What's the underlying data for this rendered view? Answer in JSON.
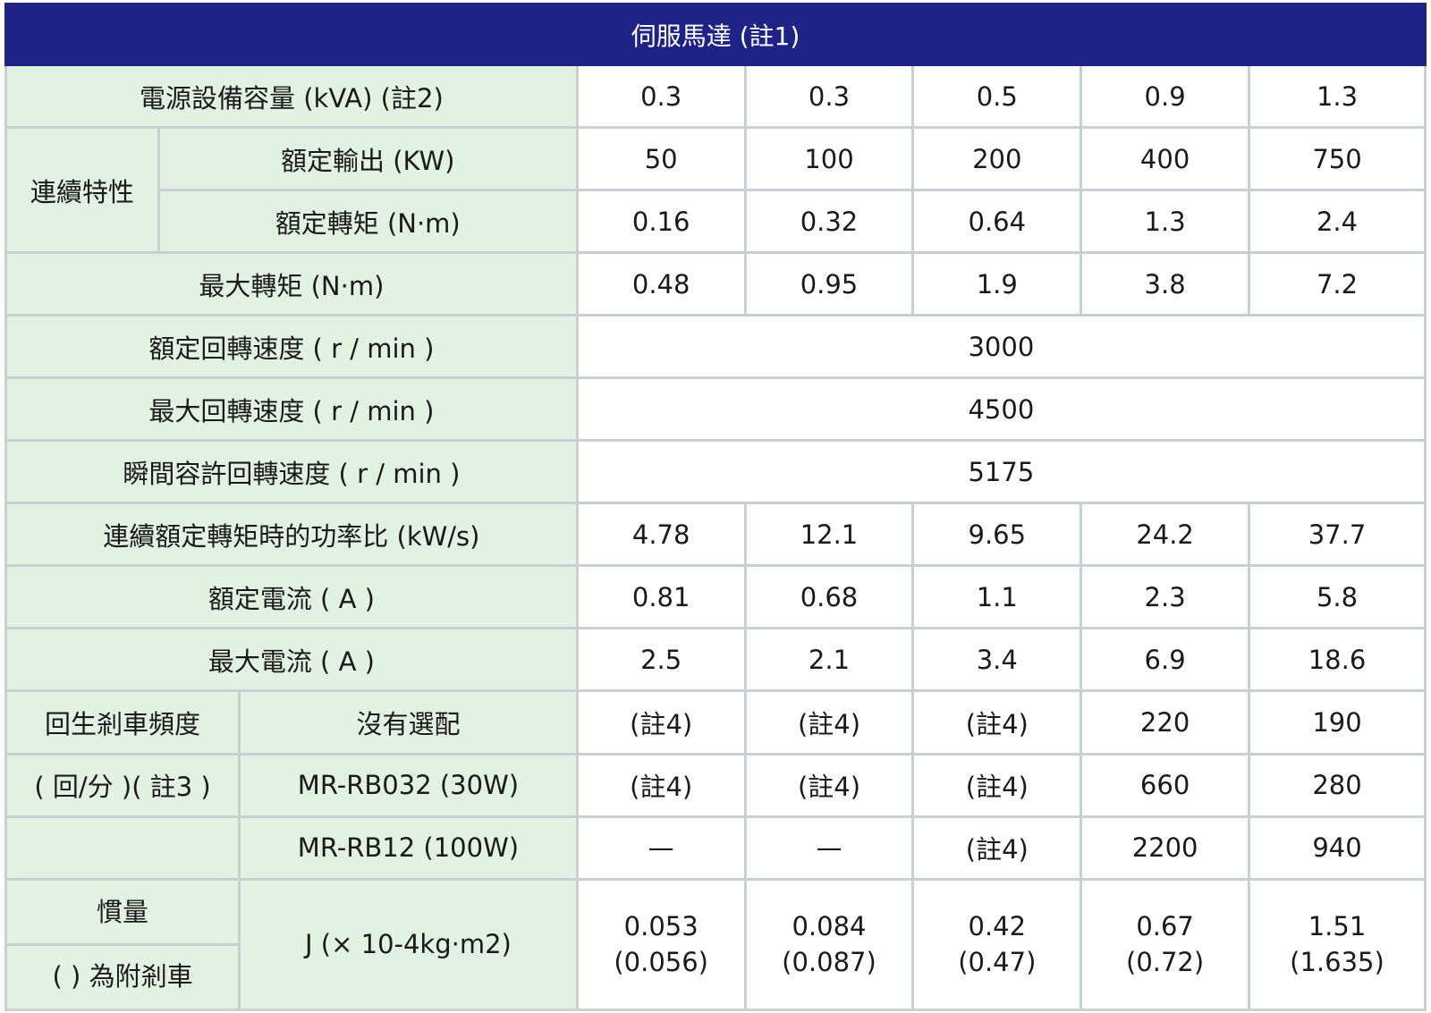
{
  "header": {
    "title": "伺服馬達 (註1)"
  },
  "rows": {
    "power_capacity": {
      "label": "電源設備容量 (kVA) (註2)",
      "values": [
        "0.3",
        "0.3",
        "0.5",
        "0.9",
        "1.3"
      ]
    },
    "continuous": {
      "group_label": "連續特性",
      "rated_output": {
        "label": "額定輸出 (KW)",
        "values": [
          "50",
          "100",
          "200",
          "400",
          "750"
        ]
      },
      "rated_torque": {
        "label": "額定轉矩 (N·m)",
        "values": [
          "0.16",
          "0.32",
          "0.64",
          "1.3",
          "2.4"
        ]
      }
    },
    "max_torque": {
      "label": "最大轉矩 (N·m)",
      "values": [
        "0.48",
        "0.95",
        "1.9",
        "3.8",
        "7.2"
      ]
    },
    "rated_speed": {
      "label": "額定回轉速度 ( r / min )",
      "value": "3000"
    },
    "max_speed": {
      "label": "最大回轉速度 ( r / min )",
      "value": "4500"
    },
    "instant_speed": {
      "label": "瞬間容許回轉速度 ( r / min )",
      "value": "5175"
    },
    "power_rate": {
      "label": "連續額定轉矩時的功率比 (kW/s)",
      "values": [
        "4.78",
        "12.1",
        "9.65",
        "24.2",
        "37.7"
      ]
    },
    "rated_current": {
      "label": "額定電流 ( A )",
      "values": [
        "0.81",
        "0.68",
        "1.1",
        "2.3",
        "5.8"
      ]
    },
    "max_current": {
      "label": "最大電流 ( A )",
      "values": [
        "2.5",
        "2.1",
        "3.4",
        "6.9",
        "18.6"
      ]
    },
    "regen": {
      "label_line1": "回生剎車頻度",
      "label_line2": "( 回/分 )( 註3 )",
      "none": {
        "label": "沒有選配",
        "values": [
          "(註4)",
          "(註4)",
          "(註4)",
          "220",
          "190"
        ]
      },
      "rb032": {
        "label": "MR-RB032 (30W)",
        "values": [
          "(註4)",
          "(註4)",
          "(註4)",
          "660",
          "280"
        ]
      },
      "rb12": {
        "label": "MR-RB12 (100W)",
        "values": [
          "—",
          "—",
          "(註4)",
          "2200",
          "940"
        ]
      }
    },
    "inertia": {
      "label_line1": "慣量",
      "label_line2": "( ) 為附剎車",
      "sub_label": "J (× 10-4kg·m2)",
      "values": [
        {
          "main": "0.053",
          "brake": "(0.056)"
        },
        {
          "main": "0.084",
          "brake": "(0.087)"
        },
        {
          "main": "0.42",
          "brake": "(0.47)"
        },
        {
          "main": "0.67",
          "brake": "(0.72)"
        },
        {
          "main": "1.51",
          "brake": "(1.635)"
        }
      ]
    }
  },
  "colors": {
    "header_bg": "#1f2385",
    "label_bg": "#e1f1e2",
    "border": "#c8d0d4"
  }
}
